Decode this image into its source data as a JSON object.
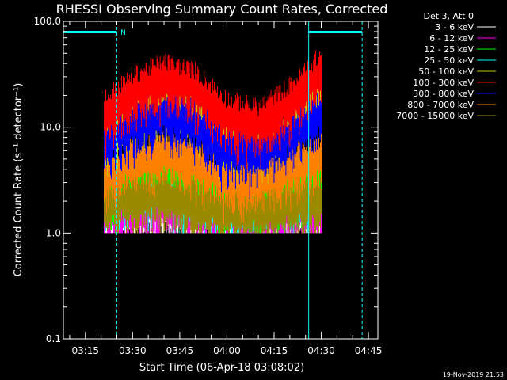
{
  "chart_data": {
    "type": "line",
    "title": "RHESSI Observing Summary Count Rates, Corrected",
    "xlabel": "Start Time (06-Apr-18 03:08:02)",
    "ylabel": "Corrected Count Rate (s⁻¹ detector⁻¹)",
    "y_scale": "log",
    "ylim": [
      0.1,
      100
    ],
    "xlim": [
      "03:08",
      "04:48"
    ],
    "x_ticks": [
      "03:15",
      "03:30",
      "03:45",
      "04:00",
      "04:15",
      "04:30",
      "04:45"
    ],
    "y_ticks": [
      "0.1",
      "1.0",
      "10.0",
      "100.0"
    ],
    "legend_header": "Det 3, Att 0",
    "series": [
      {
        "name": "3 - 6 keV",
        "color": "#ffffff",
        "x": [
          "03:21",
          "03:30",
          "03:40",
          "03:50",
          "04:00",
          "04:10",
          "04:20",
          "04:30"
        ],
        "y": [
          1.4,
          1.5,
          1.6,
          1.4,
          1.3,
          1.4,
          1.5,
          1.5
        ]
      },
      {
        "name": "6 - 12 keV",
        "color": "#ff00ff",
        "x": [
          "03:21",
          "03:30",
          "03:40",
          "03:50",
          "04:00",
          "04:10",
          "04:20",
          "04:30"
        ],
        "y": [
          1.5,
          1.6,
          1.8,
          1.5,
          1.4,
          1.4,
          1.5,
          1.6
        ]
      },
      {
        "name": "12 - 25 keV",
        "color": "#00ff00",
        "x": [
          "03:21",
          "03:30",
          "03:40",
          "03:50",
          "04:00",
          "04:10",
          "04:20",
          "04:30"
        ],
        "y": [
          2.0,
          3.5,
          4.0,
          3.0,
          2.0,
          1.8,
          2.5,
          3.0
        ]
      },
      {
        "name": "25 - 50 keV",
        "color": "#00ffff",
        "x": [
          "03:21",
          "03:30",
          "03:40",
          "03:50",
          "04:00",
          "04:10",
          "04:20",
          "04:30"
        ],
        "y": [
          2.5,
          2.5,
          2.6,
          2.0,
          1.8,
          1.8,
          2.2,
          2.8
        ]
      },
      {
        "name": "50 - 100 keV",
        "color": "#c8c800",
        "x": [
          "03:21",
          "03:30",
          "03:40",
          "03:50",
          "04:00",
          "04:10",
          "04:20",
          "04:30"
        ],
        "y": [
          8.0,
          13.0,
          18.0,
          14.0,
          8.0,
          7.0,
          10.0,
          20.0
        ]
      },
      {
        "name": "100 - 300 keV",
        "color": "#ff0000",
        "x": [
          "03:21",
          "03:30",
          "03:40",
          "03:50",
          "04:00",
          "04:10",
          "04:20",
          "04:30"
        ],
        "y": [
          12.0,
          20.0,
          27.0,
          22.0,
          12.0,
          10.0,
          16.0,
          32.0
        ]
      },
      {
        "name": "300 - 800 keV",
        "color": "#0000ff",
        "x": [
          "03:21",
          "03:30",
          "03:40",
          "03:50",
          "04:00",
          "04:10",
          "04:20",
          "04:30"
        ],
        "y": [
          7.0,
          10.0,
          13.0,
          10.0,
          6.0,
          5.5,
          8.0,
          13.0
        ]
      },
      {
        "name": "800 - 7000 keV",
        "color": "#ff8000",
        "x": [
          "03:21",
          "03:30",
          "03:40",
          "03:50",
          "04:00",
          "04:10",
          "04:20",
          "04:30"
        ],
        "y": [
          3.5,
          4.5,
          5.5,
          4.5,
          3.0,
          3.0,
          4.0,
          5.0
        ]
      },
      {
        "name": "7000 - 15000 keV",
        "color": "#9a8a00",
        "x": [
          "03:21",
          "03:30",
          "03:40",
          "03:50",
          "04:00",
          "04:10",
          "04:20",
          "04:30"
        ],
        "y": [
          1.8,
          2.0,
          2.2,
          1.8,
          1.6,
          1.6,
          1.8,
          2.0
        ]
      }
    ],
    "annotations": {
      "night_label": "N",
      "night_bar_color": "#00ffff",
      "vlines_solid": [
        "03:08",
        "04:26"
      ],
      "vlines_dashed": [
        "03:25",
        "04:43"
      ],
      "bars": [
        [
          "03:08",
          "03:25"
        ],
        [
          "04:26",
          "04:43"
        ]
      ]
    }
  },
  "footer_stamp": "19-Nov-2019 21:53"
}
